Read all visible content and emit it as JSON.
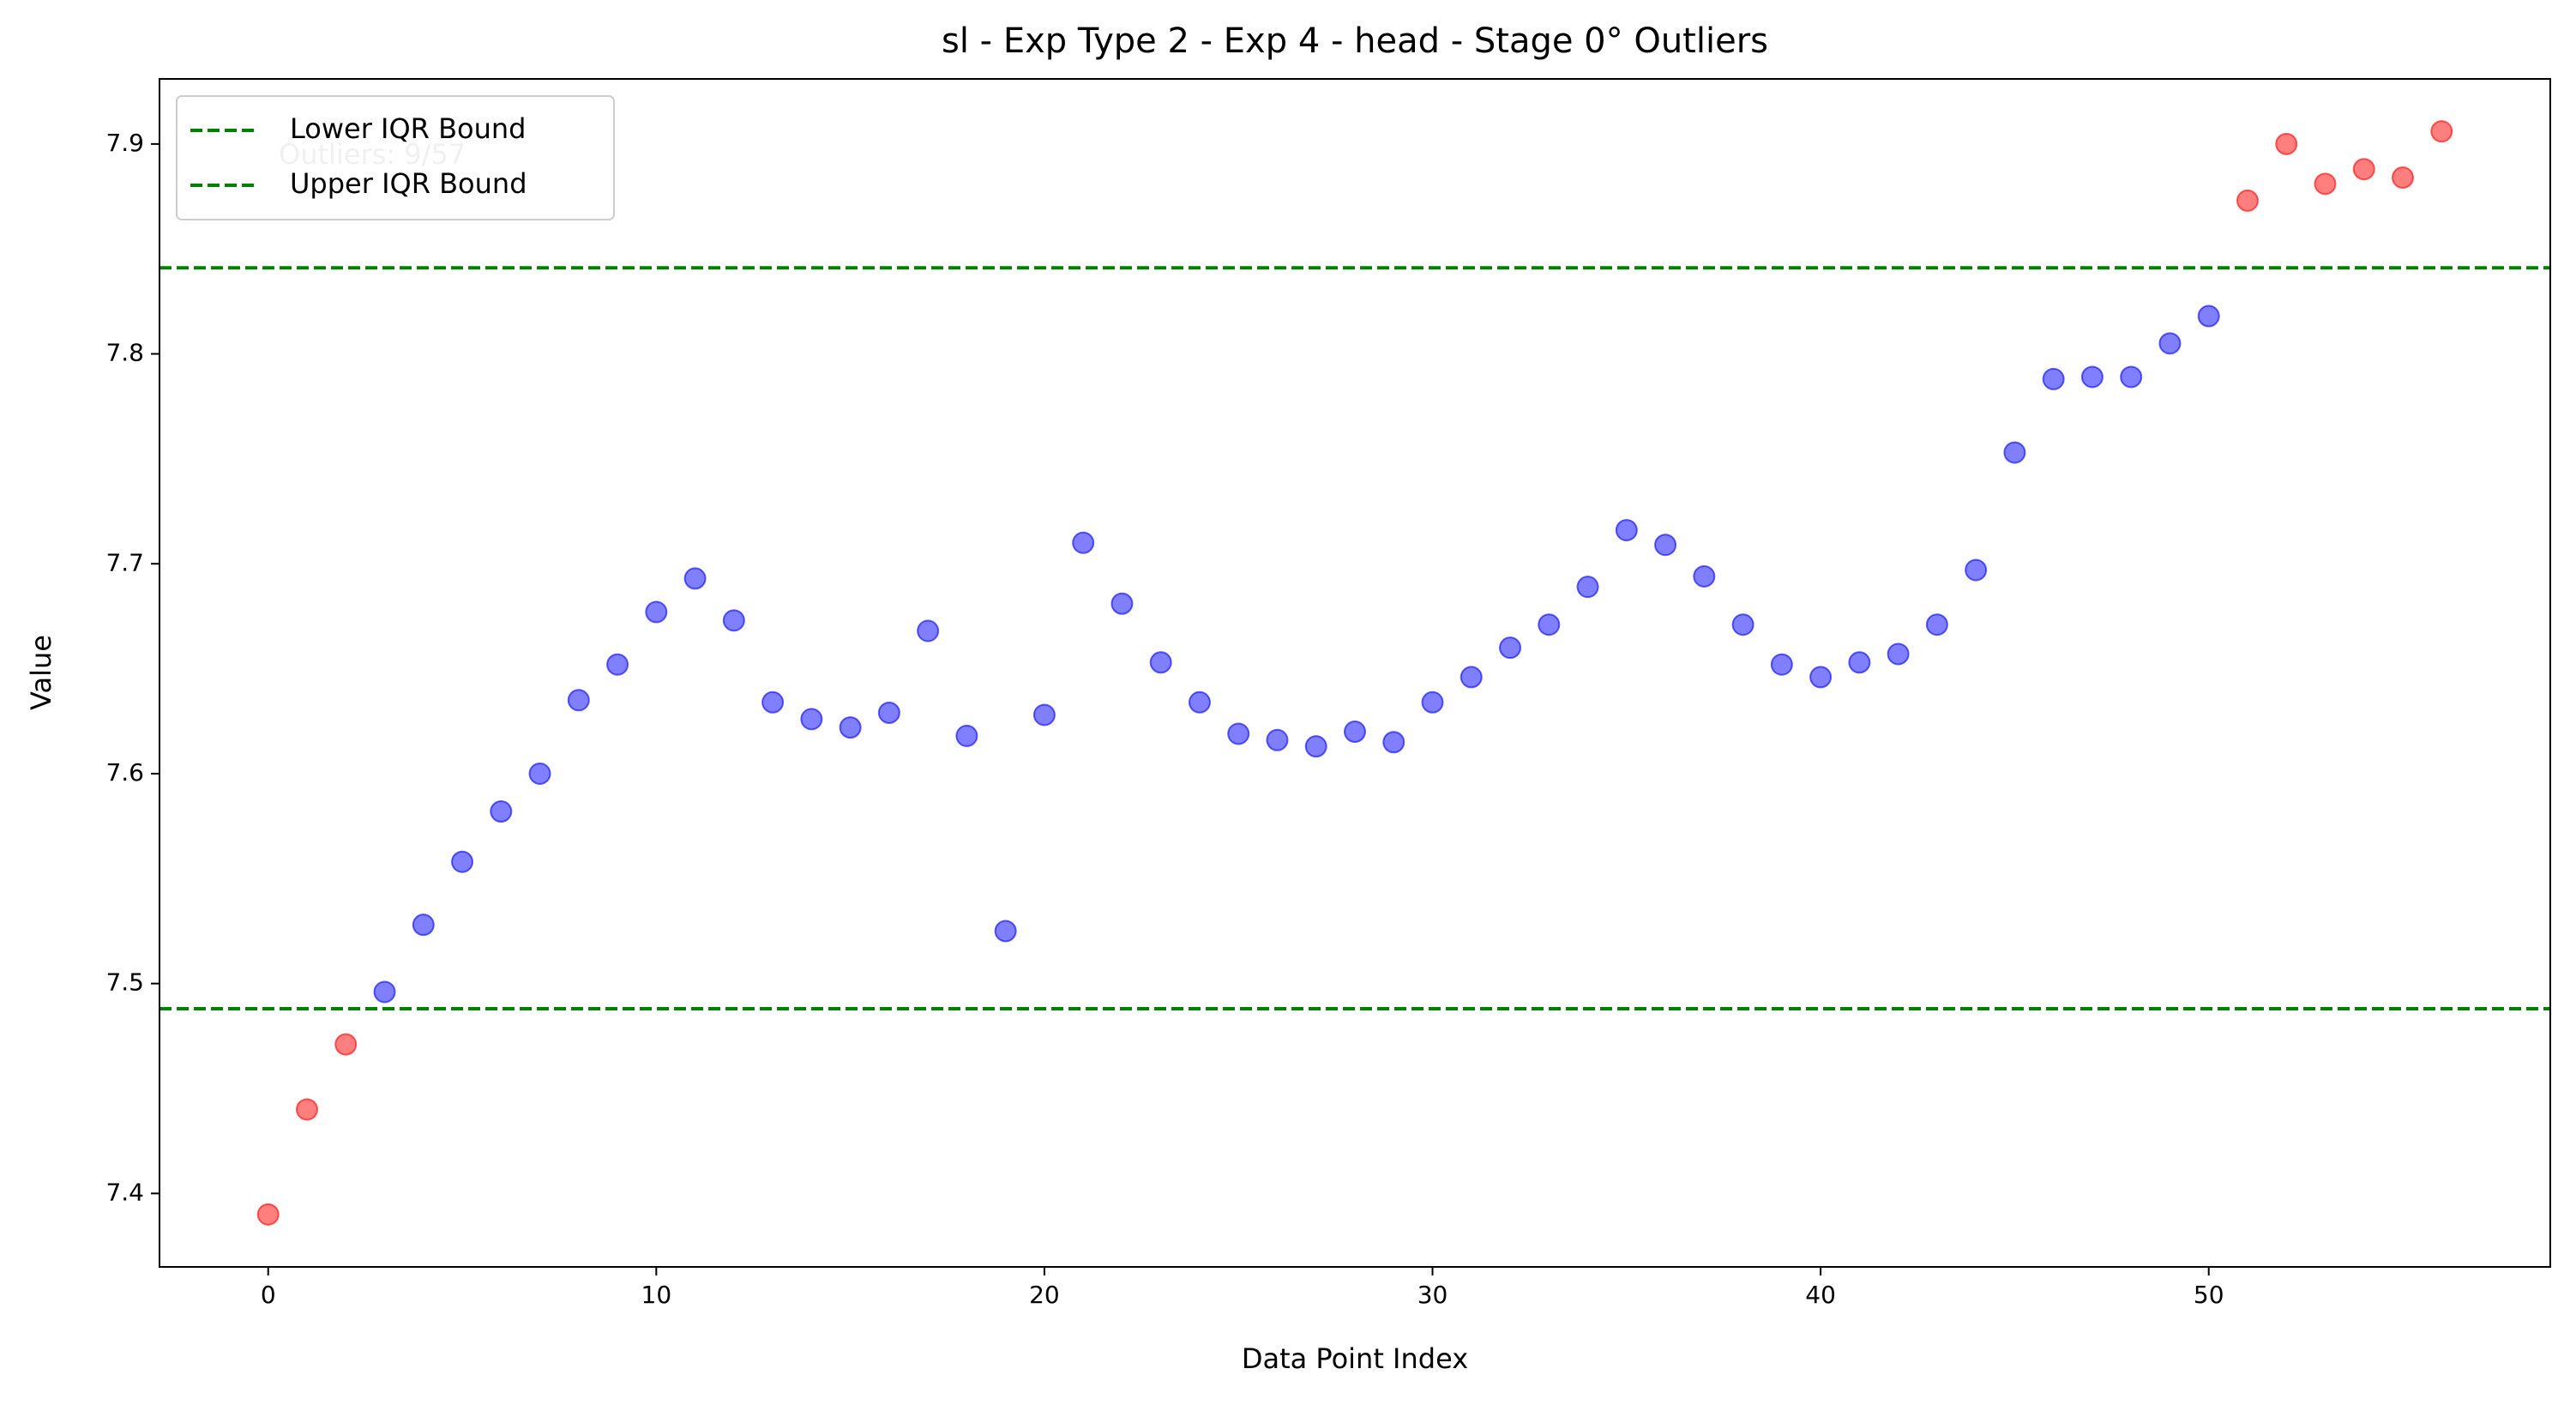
{
  "chart_data": {
    "type": "scatter",
    "title": "sl - Exp Type 2 - Exp 4 - head - Stage 0° Outliers",
    "x_label": "Data Point Index",
    "y_label": "Value",
    "annotation": "Outliers: 9/57",
    "xlim": [
      -2.8,
      58.8
    ],
    "ylim": [
      7.365,
      7.931
    ],
    "xticks": [
      0,
      10,
      20,
      30,
      40,
      50
    ],
    "yticks": [
      7.4,
      7.5,
      7.6,
      7.7,
      7.8,
      7.9
    ],
    "legend_position": "upper left",
    "series": [
      {
        "color": "#0000ff",
        "x": [
          3,
          4,
          5,
          6,
          7,
          8,
          9,
          10,
          11,
          12,
          13,
          14,
          15,
          16,
          17,
          18,
          19,
          20,
          21,
          22,
          23,
          24,
          25,
          26,
          27,
          28,
          29,
          30,
          31,
          32,
          33,
          34,
          35,
          36,
          37,
          38,
          39,
          40,
          41,
          42,
          43,
          44,
          45,
          46,
          47,
          48,
          49,
          50
        ],
        "values": [
          7.496,
          7.528,
          7.558,
          7.582,
          7.6,
          7.635,
          7.652,
          7.677,
          7.693,
          7.673,
          7.634,
          7.626,
          7.622,
          7.629,
          7.668,
          7.618,
          7.525,
          7.628,
          7.71,
          7.681,
          7.653,
          7.634,
          7.619,
          7.616,
          7.613,
          7.62,
          7.615,
          7.634,
          7.646,
          7.66,
          7.671,
          7.689,
          7.716,
          7.709,
          7.694,
          7.671,
          7.652,
          7.646,
          7.653,
          7.657,
          7.671,
          7.697,
          7.753,
          7.788,
          7.789,
          7.789,
          7.805,
          7.818
        ]
      },
      {
        "color": "#ff0000",
        "x": [
          0,
          1,
          2,
          51,
          52,
          53,
          54,
          55,
          56
        ],
        "values": [
          7.39,
          7.44,
          7.471,
          7.873,
          7.9,
          7.881,
          7.888,
          7.884,
          7.906
        ]
      }
    ],
    "lines": [
      {
        "name": "Lower IQR Bound",
        "value": 7.488,
        "color": "#008000"
      },
      {
        "name": "Upper IQR Bound",
        "value": 7.841,
        "color": "#008000"
      }
    ]
  }
}
